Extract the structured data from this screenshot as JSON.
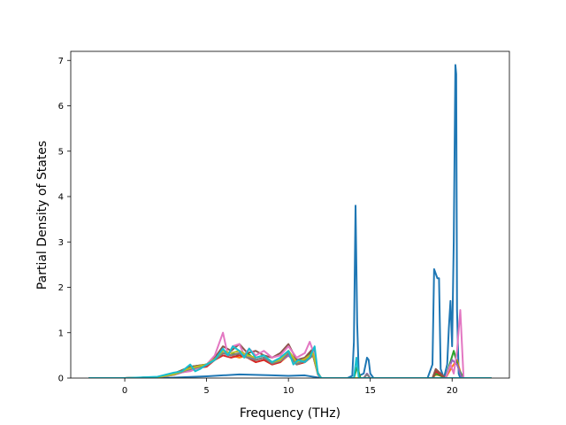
{
  "chart_data": {
    "type": "line",
    "title": "",
    "xlabel": "Frequency (THz)",
    "ylabel": "Partial Density of States",
    "xlim": [
      -3.3,
      23.5
    ],
    "ylim": [
      0,
      7.2
    ],
    "xticks": [
      0,
      5,
      10,
      15,
      20
    ],
    "yticks": [
      0,
      1,
      2,
      3,
      4,
      5,
      6,
      7
    ],
    "grid": false,
    "legend": "none",
    "series": [
      {
        "color": "#1f77b4",
        "x": [
          -2.2,
          0,
          3,
          5,
          6,
          7,
          8,
          9,
          10,
          11,
          12,
          13.6,
          13.9,
          14.0,
          14.1,
          14.2,
          14.3,
          14.6,
          14.8,
          14.9,
          15.0,
          15.2,
          18.5,
          18.8,
          18.9,
          19.0,
          19.1,
          19.2,
          19.3,
          19.5,
          19.7,
          19.8,
          19.9,
          20.0,
          20.1,
          20.2,
          20.25,
          20.3,
          20.4,
          20.5,
          22.4
        ],
        "y": [
          0,
          0,
          0.01,
          0.04,
          0.06,
          0.08,
          0.07,
          0.06,
          0.05,
          0.06,
          0,
          0,
          0.05,
          0.8,
          3.8,
          1.2,
          0.05,
          0.1,
          0.45,
          0.4,
          0.1,
          0,
          0,
          0.3,
          2.4,
          2.3,
          2.2,
          2.2,
          0.2,
          0,
          0.3,
          1.1,
          1.7,
          0.7,
          3.0,
          6.9,
          6.7,
          1.5,
          0.1,
          0,
          0
        ]
      },
      {
        "color": "#ff7f0e",
        "x": [
          -2.2,
          0,
          2,
          3,
          4,
          5,
          5.5,
          6,
          6.5,
          7,
          7.5,
          8,
          8.5,
          9,
          9.5,
          10,
          10.5,
          11,
          11.5,
          11.8,
          12,
          18.8,
          19.0,
          19.3,
          19.6,
          20.0,
          20.3,
          20.6,
          22.4
        ],
        "y": [
          0,
          0,
          0.02,
          0.07,
          0.2,
          0.3,
          0.4,
          0.55,
          0.5,
          0.45,
          0.5,
          0.35,
          0.4,
          0.3,
          0.35,
          0.5,
          0.3,
          0.35,
          0.5,
          0.1,
          0,
          0,
          0.08,
          0.05,
          0,
          0.25,
          0.4,
          0,
          0
        ]
      },
      {
        "color": "#2ca02c",
        "x": [
          -2.2,
          0,
          2,
          3,
          4,
          5,
          5.5,
          6,
          6.5,
          7,
          7.5,
          8,
          8.5,
          9,
          9.5,
          10,
          10.5,
          11,
          11.5,
          11.8,
          12,
          14.0,
          14.2,
          14.4,
          18.8,
          19.0,
          19.3,
          19.6,
          20.1,
          20.4,
          20.7,
          22.4
        ],
        "y": [
          0,
          0,
          0.02,
          0.1,
          0.25,
          0.3,
          0.45,
          0.6,
          0.55,
          0.5,
          0.55,
          0.4,
          0.45,
          0.35,
          0.4,
          0.6,
          0.35,
          0.4,
          0.6,
          0.1,
          0,
          0,
          0.25,
          0,
          0,
          0.1,
          0.05,
          0,
          0.6,
          0.2,
          0,
          0
        ]
      },
      {
        "color": "#d62728",
        "x": [
          -2.2,
          0,
          2,
          3,
          4,
          5,
          5.5,
          6,
          6.5,
          7,
          7.5,
          8,
          8.5,
          9,
          9.5,
          10,
          10.5,
          11,
          11.5,
          11.8,
          12,
          18.8,
          19.0,
          19.2,
          19.6,
          22.4
        ],
        "y": [
          0,
          0,
          0.02,
          0.08,
          0.2,
          0.25,
          0.4,
          0.5,
          0.45,
          0.5,
          0.45,
          0.35,
          0.4,
          0.3,
          0.35,
          0.55,
          0.3,
          0.35,
          0.5,
          0.08,
          0,
          0,
          0.15,
          0.1,
          0,
          0
        ]
      },
      {
        "color": "#9467bd",
        "x": [
          -2.2,
          0,
          2,
          3,
          4,
          5,
          5.5,
          6,
          6.5,
          7,
          7.5,
          8,
          8.5,
          9,
          9.5,
          10,
          10.5,
          11,
          11.5,
          11.8,
          12,
          14.6,
          14.8,
          15.0,
          19.6,
          20.0,
          20.3,
          20.6,
          22.4
        ],
        "y": [
          0,
          0,
          0.02,
          0.07,
          0.18,
          0.28,
          0.42,
          0.55,
          0.5,
          0.55,
          0.5,
          0.4,
          0.45,
          0.33,
          0.38,
          0.5,
          0.32,
          0.38,
          0.52,
          0.1,
          0,
          0,
          0.1,
          0,
          0,
          0.4,
          0.3,
          0,
          0
        ]
      },
      {
        "color": "#8c564b",
        "x": [
          -2.2,
          0,
          2,
          3,
          4,
          5,
          5.5,
          6,
          6.5,
          7,
          7.5,
          8,
          8.5,
          9,
          9.5,
          10,
          10.5,
          11,
          11.5,
          11.8,
          12,
          18.8,
          19.0,
          19.3,
          19.6,
          22.4
        ],
        "y": [
          0,
          0,
          0.02,
          0.1,
          0.25,
          0.3,
          0.45,
          0.7,
          0.6,
          0.75,
          0.55,
          0.6,
          0.5,
          0.45,
          0.55,
          0.75,
          0.4,
          0.45,
          0.65,
          0.12,
          0,
          0,
          0.2,
          0.1,
          0,
          0
        ]
      },
      {
        "color": "#e377c2",
        "x": [
          -2.2,
          0,
          2,
          3,
          4,
          5,
          5.5,
          6,
          6.3,
          6.6,
          7,
          7.3,
          7.6,
          8,
          8.5,
          9,
          9.5,
          10,
          10.5,
          11,
          11.3,
          11.6,
          11.8,
          12,
          19.6,
          19.9,
          20.1,
          20.3,
          20.5,
          20.7,
          22.4
        ],
        "y": [
          0,
          0,
          0.02,
          0.1,
          0.15,
          0.3,
          0.5,
          1.0,
          0.5,
          0.7,
          0.75,
          0.5,
          0.65,
          0.5,
          0.6,
          0.45,
          0.5,
          0.7,
          0.45,
          0.55,
          0.8,
          0.5,
          0.1,
          0,
          0,
          0.3,
          0.1,
          0.6,
          1.5,
          0,
          0
        ]
      },
      {
        "color": "#7f7f7f",
        "x": [
          -2.2,
          0,
          2,
          3,
          4,
          5,
          5.5,
          6,
          6.5,
          7,
          7.5,
          8,
          8.5,
          9,
          9.5,
          10,
          10.5,
          11,
          11.5,
          11.8,
          12,
          14.6,
          14.8,
          15.0,
          22.4
        ],
        "y": [
          0,
          0,
          0.02,
          0.08,
          0.2,
          0.28,
          0.4,
          0.55,
          0.5,
          0.55,
          0.45,
          0.4,
          0.45,
          0.32,
          0.38,
          0.55,
          0.3,
          0.38,
          0.5,
          0.1,
          0,
          0,
          0.08,
          0,
          0
        ]
      },
      {
        "color": "#bcbd22",
        "x": [
          -2.2,
          0,
          2,
          3,
          4,
          5,
          5.5,
          6,
          6.5,
          7,
          7.5,
          8,
          8.5,
          9,
          9.5,
          10,
          10.5,
          11,
          11.5,
          11.8,
          12,
          22.4
        ],
        "y": [
          0,
          0,
          0.02,
          0.08,
          0.22,
          0.3,
          0.42,
          0.6,
          0.55,
          0.6,
          0.5,
          0.45,
          0.5,
          0.35,
          0.4,
          0.6,
          0.35,
          0.42,
          0.55,
          0.1,
          0,
          0
        ]
      },
      {
        "color": "#17becf",
        "x": [
          -2.2,
          0,
          2,
          3,
          3.5,
          4,
          4.3,
          4.6,
          5,
          5.5,
          6,
          6.3,
          6.6,
          7,
          7.3,
          7.6,
          8,
          8.5,
          9,
          9.5,
          10,
          10.3,
          10.6,
          11,
          11.3,
          11.6,
          11.8,
          12,
          14.0,
          14.15,
          14.3,
          22.4
        ],
        "y": [
          0,
          0,
          0.03,
          0.12,
          0.15,
          0.3,
          0.15,
          0.2,
          0.3,
          0.4,
          0.65,
          0.5,
          0.7,
          0.6,
          0.45,
          0.65,
          0.45,
          0.5,
          0.35,
          0.45,
          0.6,
          0.3,
          0.4,
          0.35,
          0.45,
          0.7,
          0.1,
          0,
          0,
          0.45,
          0,
          0
        ]
      }
    ]
  }
}
